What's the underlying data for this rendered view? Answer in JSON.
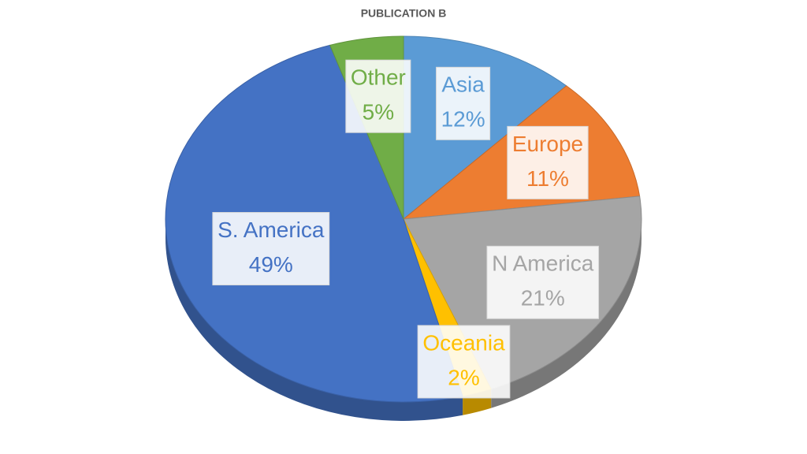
{
  "chart_data": {
    "type": "pie",
    "title": "PUBLICATION B",
    "categories": [
      "Asia",
      "Europe",
      "N America",
      "Oceania",
      "S. America",
      "Other"
    ],
    "values": [
      12,
      11,
      21,
      2,
      49,
      5
    ],
    "value_labels": [
      "12%",
      "11%",
      "21%",
      "2%",
      "49%",
      "5%"
    ],
    "colors": [
      "#5b9bd5",
      "#ed7d31",
      "#a5a5a5",
      "#ffc000",
      "#4472c4",
      "#70ad47"
    ]
  }
}
